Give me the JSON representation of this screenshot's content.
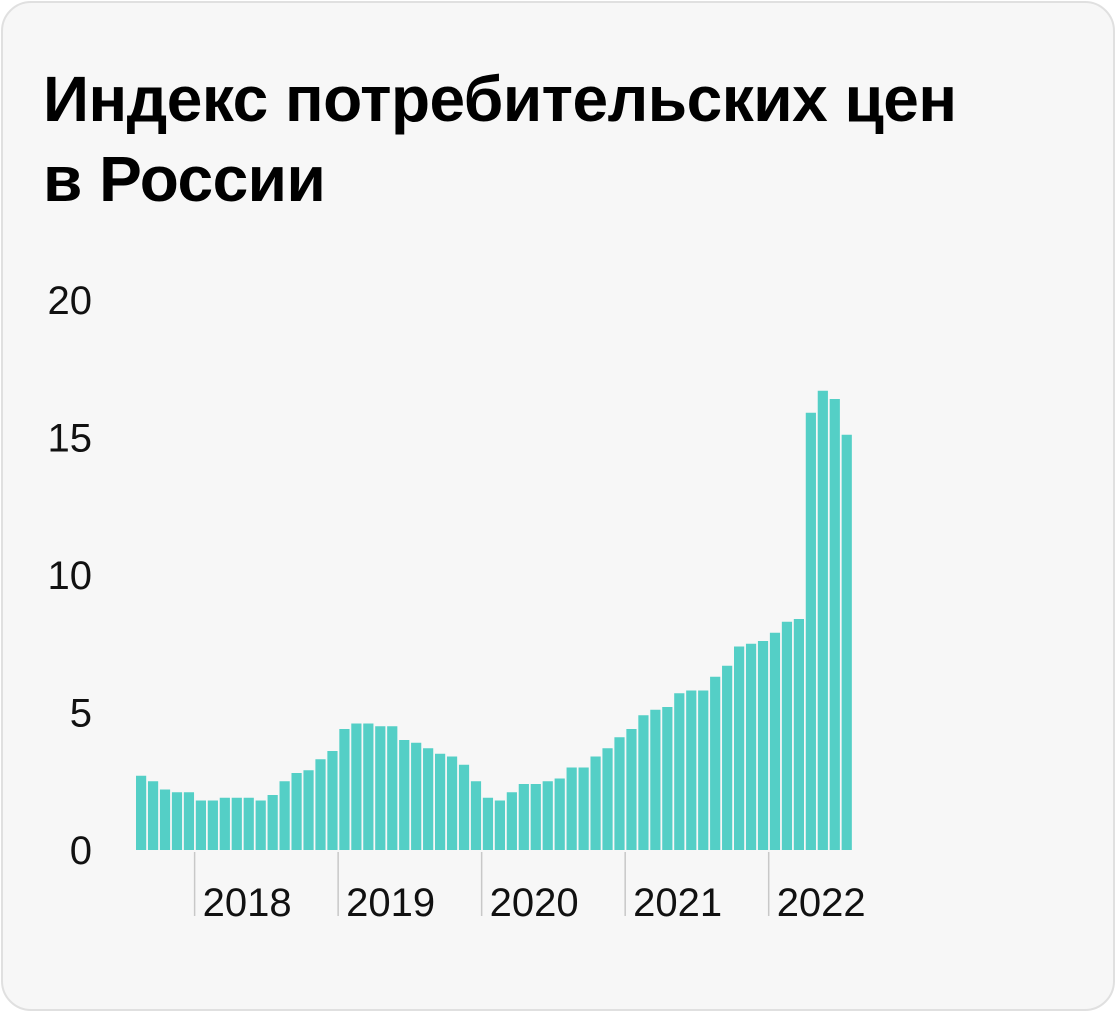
{
  "title_lines": [
    "Индекс потребительских цен",
    "в России"
  ],
  "colors": {
    "bar": "#54cfc6",
    "background": "#f7f7f7",
    "border": "#e0e0e0",
    "text": "#000000",
    "tick_line": "#c8c8c8"
  },
  "chart_data": {
    "type": "bar",
    "title": "Индекс потребительских цен в России",
    "xlabel": "",
    "ylabel": "",
    "ylim": [
      0,
      20
    ],
    "yticks": [
      "0",
      "5",
      "10",
      "15",
      "20"
    ],
    "year_labels": [
      "2018",
      "2019",
      "2020",
      "2021",
      "2022"
    ],
    "grid": false,
    "legend": "none",
    "values": [
      2.7,
      2.5,
      2.2,
      2.1,
      2.1,
      1.8,
      1.8,
      1.9,
      1.9,
      1.9,
      1.8,
      2.0,
      2.5,
      2.8,
      2.9,
      3.3,
      3.6,
      4.4,
      4.6,
      4.6,
      4.5,
      4.5,
      4.0,
      3.9,
      3.7,
      3.5,
      3.4,
      3.1,
      2.5,
      1.9,
      1.8,
      2.1,
      2.4,
      2.4,
      2.5,
      2.6,
      3.0,
      3.0,
      3.4,
      3.7,
      4.1,
      4.4,
      4.9,
      5.1,
      5.2,
      5.7,
      5.8,
      5.8,
      6.3,
      6.7,
      7.4,
      7.5,
      7.6,
      7.9,
      8.3,
      8.4,
      15.9,
      16.7,
      16.4,
      15.1
    ]
  }
}
